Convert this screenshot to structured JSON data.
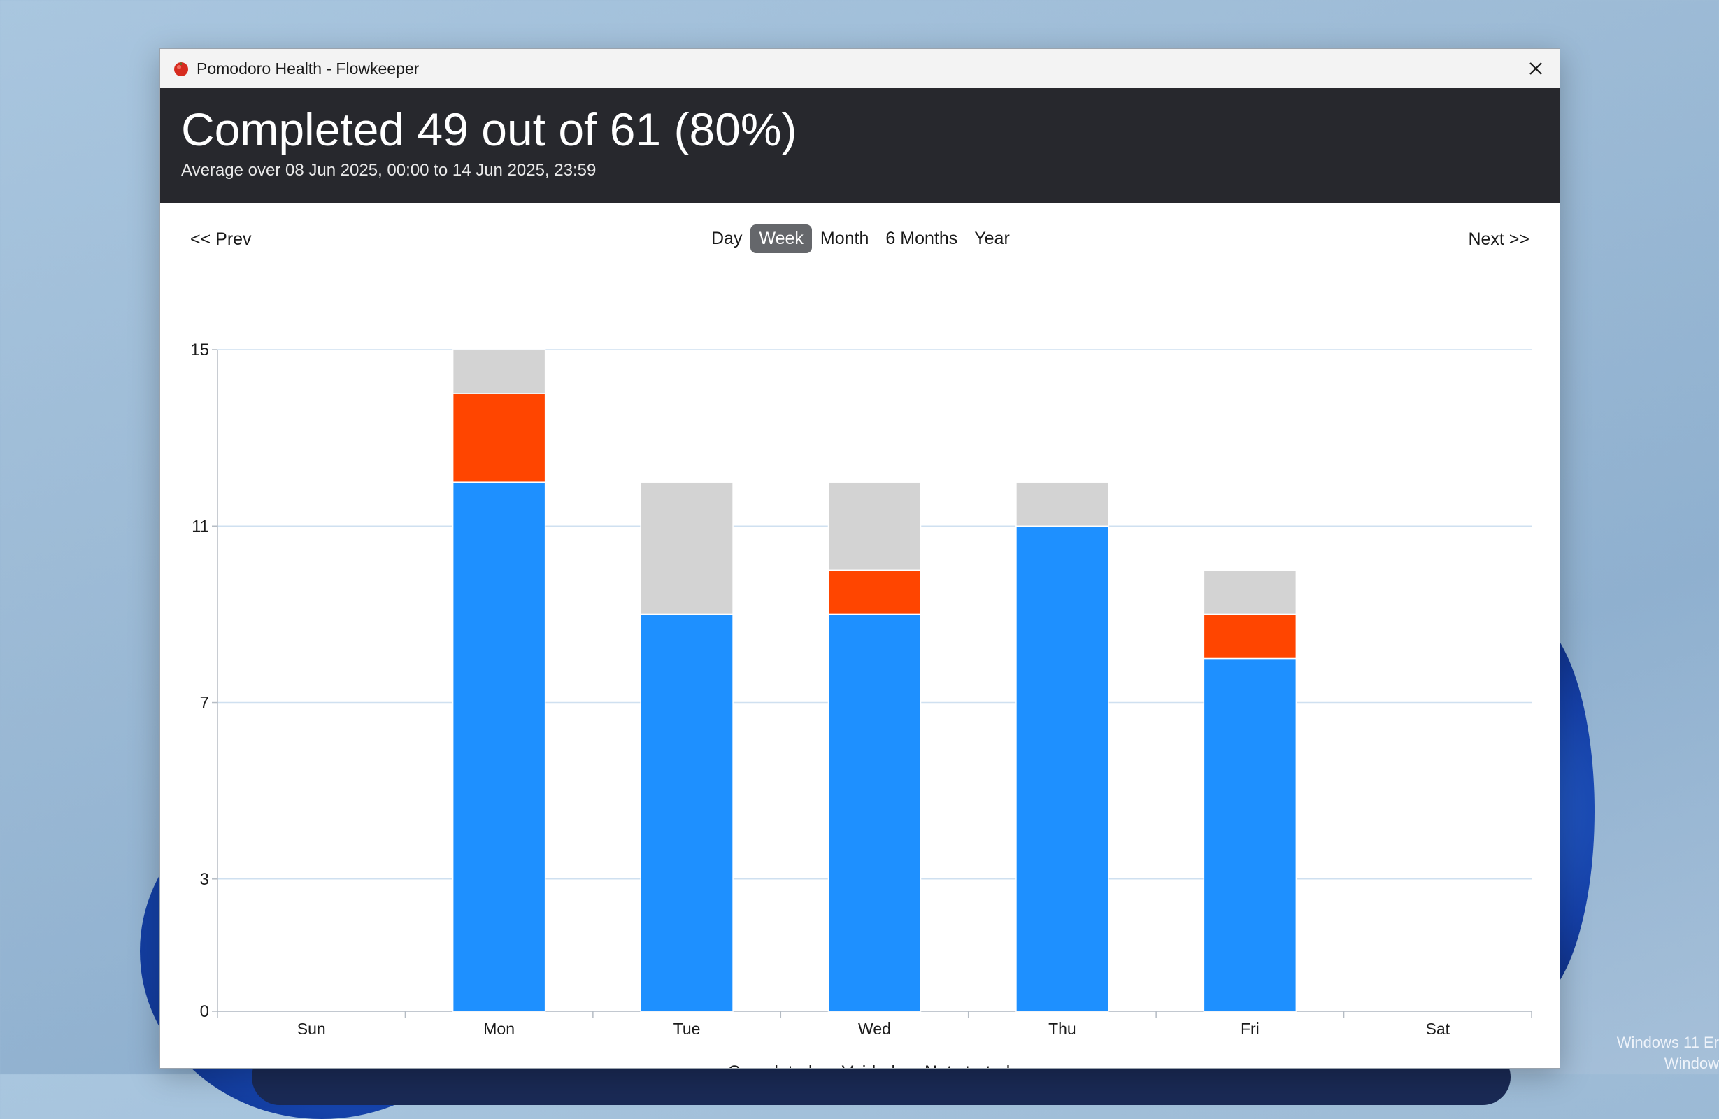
{
  "window": {
    "title": "Pomodoro Health - Flowkeeper"
  },
  "banner": {
    "title": "Completed 49 out of 61 (80%)",
    "subtitle": "Average over 08 Jun 2025, 00:00 to 14 Jun 2025, 23:59"
  },
  "nav": {
    "prev_label": "<< Prev",
    "next_label": "Next >>",
    "periods": [
      "Day",
      "Week",
      "Month",
      "6 Months",
      "Year"
    ],
    "active_period": "Week"
  },
  "chart_data": {
    "type": "bar",
    "stacked": true,
    "categories": [
      "Sun",
      "Mon",
      "Tue",
      "Wed",
      "Thu",
      "Fri",
      "Sat"
    ],
    "series": [
      {
        "name": "Completed",
        "values": [
          0,
          12,
          9,
          9,
          11,
          8,
          0
        ],
        "color": "#1e90ff"
      },
      {
        "name": "Voided",
        "values": [
          0,
          2,
          0,
          1,
          0,
          1,
          0
        ],
        "color": "#ff4500"
      },
      {
        "name": "Not started",
        "values": [
          0,
          1,
          3,
          2,
          1,
          1,
          0
        ],
        "color": "#d3d3d3"
      }
    ],
    "yticks": [
      0,
      3,
      7,
      11,
      15
    ],
    "ylim": [
      0,
      15
    ],
    "grid": true,
    "legend": "bottom-center"
  },
  "watermark": {
    "line1": "Windows 11 Er",
    "line2": "Window"
  }
}
